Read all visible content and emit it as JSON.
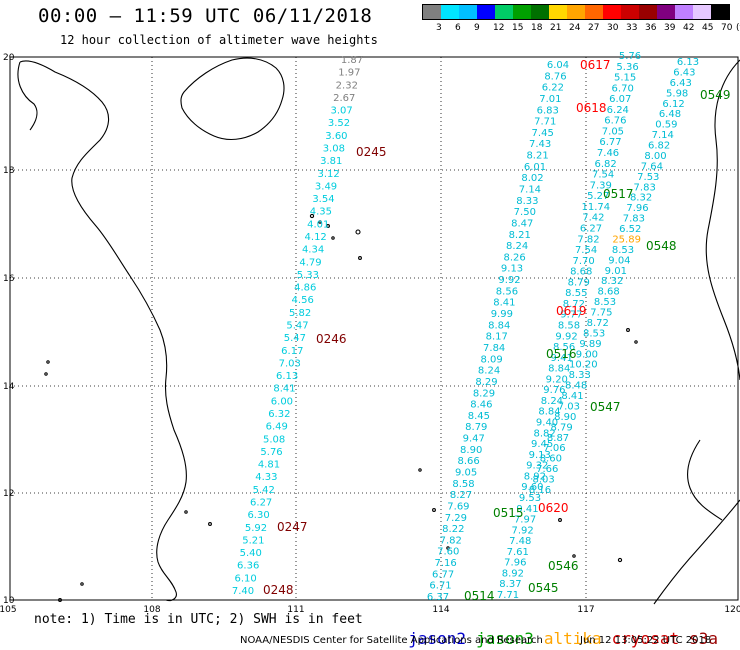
{
  "header": {
    "title": "00:00 – 11:59 UTC 06/11/2018",
    "subtitle": "12 hour collection of altimeter wave heights"
  },
  "legend": {
    "labels": [
      "3",
      "6",
      "9",
      "12",
      "15",
      "18",
      "21",
      "24",
      "27",
      "30",
      "33",
      "36",
      "39",
      "42",
      "45",
      "70"
    ],
    "unit": "(ft)",
    "colors": [
      "#808080",
      "#00e5ff",
      "#00bfff",
      "#0000ff",
      "#00cc66",
      "#00a000",
      "#007000",
      "#ffd700",
      "#ffa500",
      "#ff6600",
      "#ff0000",
      "#cc0000",
      "#990000",
      "#800080",
      "#c080ff",
      "#e6c8ff",
      "#000000"
    ]
  },
  "axes": {
    "x_ticks": [
      "105",
      "108",
      "111",
      "114",
      "117",
      "120"
    ],
    "y_ticks": [
      "20",
      "18",
      "16",
      "14",
      "12",
      "10"
    ]
  },
  "footer": {
    "note": "note: 1) Time is in UTC; 2) SWH is in feet",
    "satellites": [
      {
        "name": "jason2",
        "color": "#0000cc"
      },
      {
        "name": "jason3",
        "color": "#00a000"
      },
      {
        "name": "altika",
        "color": "#ffa500"
      },
      {
        "name": "cryosat",
        "color": "#cc0000"
      },
      {
        "name": "s3a",
        "color": "#990000"
      }
    ],
    "credit": "NOAA/NESDIS Center for Satellite Applications and Research",
    "timestamp": "Jun 12 13:05:22 UTC 2018"
  },
  "time_labels": [
    {
      "text": "0245",
      "color": "#800000"
    },
    {
      "text": "0246",
      "color": "#800000"
    },
    {
      "text": "0247",
      "color": "#800000"
    },
    {
      "text": "0248",
      "color": "#800000"
    },
    {
      "text": "0617",
      "color": "#ff0000"
    },
    {
      "text": "0618",
      "color": "#ff0000"
    },
    {
      "text": "0619",
      "color": "#ff0000"
    },
    {
      "text": "0620",
      "color": "#ff0000"
    },
    {
      "text": "0549",
      "color": "#008000"
    },
    {
      "text": "0548",
      "color": "#008000"
    },
    {
      "text": "0547",
      "color": "#008000"
    },
    {
      "text": "0546",
      "color": "#008000"
    },
    {
      "text": "0545",
      "color": "#008000"
    },
    {
      "text": "0517",
      "color": "#008000"
    },
    {
      "text": "0516",
      "color": "#008000"
    },
    {
      "text": "0515",
      "color": "#008000"
    },
    {
      "text": "0514",
      "color": "#008000"
    }
  ],
  "track_s3a": {
    "values": [
      "1.87",
      "1.97",
      "2.32",
      "2.67",
      "3.07",
      "3.52",
      "3.60",
      "3.08",
      "3.81",
      "3.12",
      "3.49",
      "3.54",
      "4.35",
      "4.01",
      "4.12",
      "4.34",
      "4.79",
      "5.33",
      "4.86",
      "4.56",
      "5.82",
      "5.47",
      "5.47",
      "6.17",
      "7.03",
      "6.13",
      "8.41",
      "6.00",
      "6.32",
      "6.49",
      "5.08",
      "5.76",
      "4.81",
      "4.33",
      "5.42",
      "6.27",
      "6.30",
      "5.92",
      "5.21",
      "5.40",
      "6.36",
      "6.10",
      "7.40"
    ],
    "gray_count": 4
  },
  "track_cryosat": {
    "values": [
      "6.04",
      "8.76",
      "6.22",
      "7.01",
      "6.83",
      "7.71",
      "7.45",
      "7.43",
      "8.21",
      "6.01",
      "8.02",
      "7.14",
      "8.33",
      "7.50",
      "8.47",
      "8.21",
      "8.24",
      "8.26",
      "9.13",
      "9.92",
      "8.56",
      "8.41",
      "9.99",
      "8.84",
      "8.17",
      "7.84",
      "8.09",
      "8.24",
      "8.29",
      "8.29",
      "8.46",
      "8.45",
      "8.79",
      "9.47",
      "8.90",
      "8.66",
      "9.05",
      "8.58",
      "8.27",
      "7.69",
      "7.29",
      "8.22",
      "7.82",
      "7.60",
      "7.16",
      "6.77",
      "6.71",
      "6.37"
    ]
  },
  "track_jason3_a": {
    "values": [
      "5.76",
      "5.36",
      "5.15",
      "6.70",
      "6.07",
      "6.24",
      "6.76",
      "7.05",
      "6.77",
      "7.46",
      "6.82",
      "7.54",
      "7.39",
      "5.27",
      "11.74",
      "7.42",
      "6.27",
      "7.82",
      "7.54",
      "7.70",
      "8.68",
      "8.79",
      "8.55",
      "8.72",
      "9.77",
      "8.58",
      "9.92",
      "8.56",
      "9.41",
      "8.84",
      "9.20",
      "9.76",
      "8.24",
      "8.84",
      "9.40",
      "8.82",
      "9.45",
      "9.13",
      "9.32",
      "8.92",
      "9.60",
      "9.53",
      "9.41",
      "7.97",
      "7.92",
      "7.48",
      "7.61",
      "7.96",
      "8.92",
      "8.37",
      "7.71"
    ]
  },
  "track_jason3_b": {
    "values": [
      "6.13",
      "6.43",
      "6.43",
      "5.98",
      "6.12",
      "6.48",
      "0.59",
      "7.14",
      "6.82",
      "8.00",
      "7.64",
      "7.53",
      "7.83",
      "8.32",
      "7.96",
      "7.83",
      "6.52",
      "25.89",
      "8.53",
      "9.04",
      "9.01",
      "8.32",
      "8.68",
      "8.53",
      "7.75",
      "8.72",
      "8.53",
      "9.89",
      "9.00",
      "10.20",
      "8.33",
      "8.48",
      "8.41",
      "7.03",
      "8.90",
      "8.79",
      "8.87",
      "7.06",
      "8.60",
      "7.66",
      "8.03",
      "8.16"
    ],
    "highlight_index": 17,
    "highlight_color": "#ffa500"
  }
}
